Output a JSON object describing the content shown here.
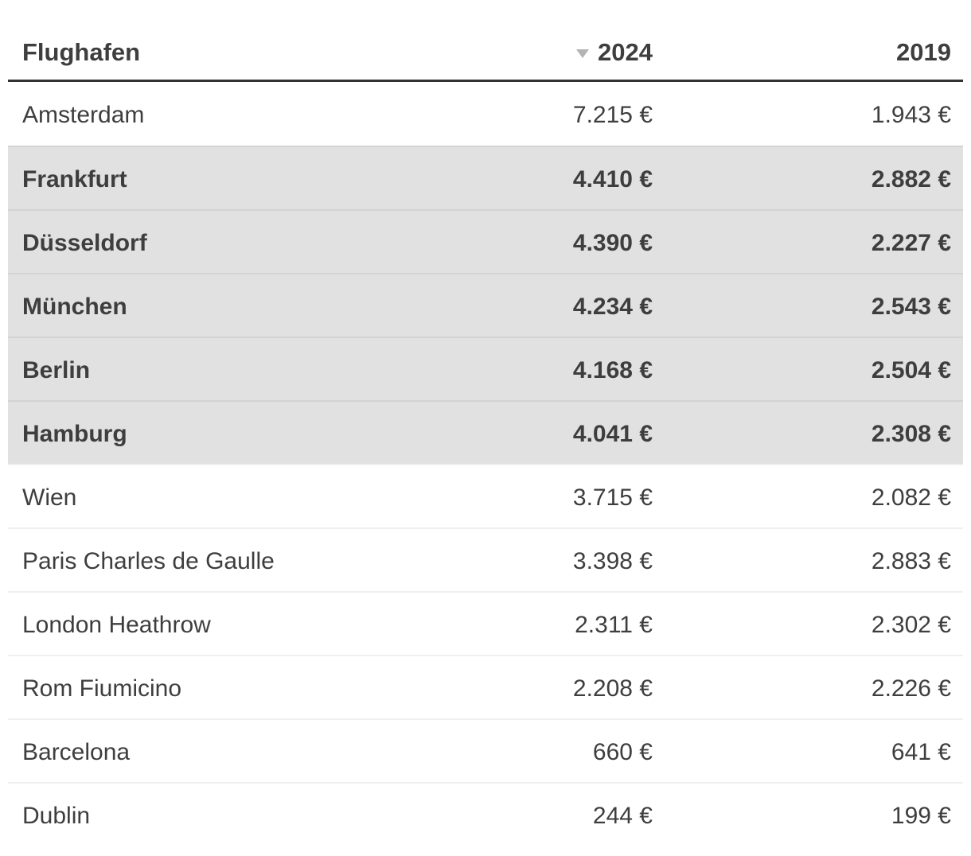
{
  "header": {
    "flughafen": "Flughafen",
    "y2024": "2024",
    "y2019": "2019"
  },
  "sort": {
    "column": "2024",
    "direction": "descending",
    "icon": "triangle-down"
  },
  "colors": {
    "highlight_row_bg": "#e1e1e1",
    "text": "#3e3e3e",
    "header_rule": "#333333",
    "row_separator": "rgba(0,0,0,0.058)",
    "sort_icon": "#b4b4b4"
  },
  "chart_data": {
    "type": "table",
    "columns": [
      "Flughafen",
      "2024",
      "2019"
    ],
    "sorted_by": "2024",
    "sort_direction": "desc",
    "currency": "EUR",
    "rows": [
      {
        "airport": "Amsterdam",
        "y2024": 7215,
        "y2019": 1943,
        "y2024_display": "7.215 €",
        "y2019_display": "1.943 €",
        "highlighted": false
      },
      {
        "airport": "Frankfurt",
        "y2024": 4410,
        "y2019": 2882,
        "y2024_display": "4.410 €",
        "y2019_display": "2.882 €",
        "highlighted": true
      },
      {
        "airport": "Düsseldorf",
        "y2024": 4390,
        "y2019": 2227,
        "y2024_display": "4.390 €",
        "y2019_display": "2.227 €",
        "highlighted": true
      },
      {
        "airport": "München",
        "y2024": 4234,
        "y2019": 2543,
        "y2024_display": "4.234 €",
        "y2019_display": "2.543 €",
        "highlighted": true
      },
      {
        "airport": "Berlin",
        "y2024": 4168,
        "y2019": 2504,
        "y2024_display": "4.168 €",
        "y2019_display": "2.504 €",
        "highlighted": true
      },
      {
        "airport": "Hamburg",
        "y2024": 4041,
        "y2019": 2308,
        "y2024_display": "4.041 €",
        "y2019_display": "2.308 €",
        "highlighted": true
      },
      {
        "airport": "Wien",
        "y2024": 3715,
        "y2019": 2082,
        "y2024_display": "3.715 €",
        "y2019_display": "2.082 €",
        "highlighted": false
      },
      {
        "airport": "Paris Charles de Gaulle",
        "y2024": 3398,
        "y2019": 2883,
        "y2024_display": "3.398 €",
        "y2019_display": "2.883 €",
        "highlighted": false
      },
      {
        "airport": "London Heathrow",
        "y2024": 2311,
        "y2019": 2302,
        "y2024_display": "2.311 €",
        "y2019_display": "2.302 €",
        "highlighted": false
      },
      {
        "airport": "Rom Fiumicino",
        "y2024": 2208,
        "y2019": 2226,
        "y2024_display": "2.208 €",
        "y2019_display": "2.226 €",
        "highlighted": false
      },
      {
        "airport": "Barcelona",
        "y2024": 660,
        "y2019": 641,
        "y2024_display": "660 €",
        "y2019_display": "641 €",
        "highlighted": false
      },
      {
        "airport": "Dublin",
        "y2024": 244,
        "y2019": 199,
        "y2024_display": "244 €",
        "y2019_display": "199 €",
        "highlighted": false
      }
    ]
  }
}
